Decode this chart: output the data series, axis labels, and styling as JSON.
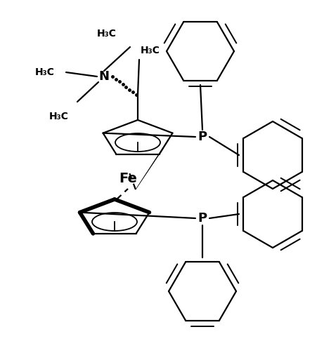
{
  "bg_color": "#ffffff",
  "lc": "#000000",
  "lw": 1.6,
  "lw_bold": 4.0,
  "lw_inner": 1.3,
  "fig_width": 4.51,
  "fig_height": 5.03,
  "dpi": 100,
  "xlim": [
    0,
    451
  ],
  "ylim": [
    0,
    503
  ]
}
